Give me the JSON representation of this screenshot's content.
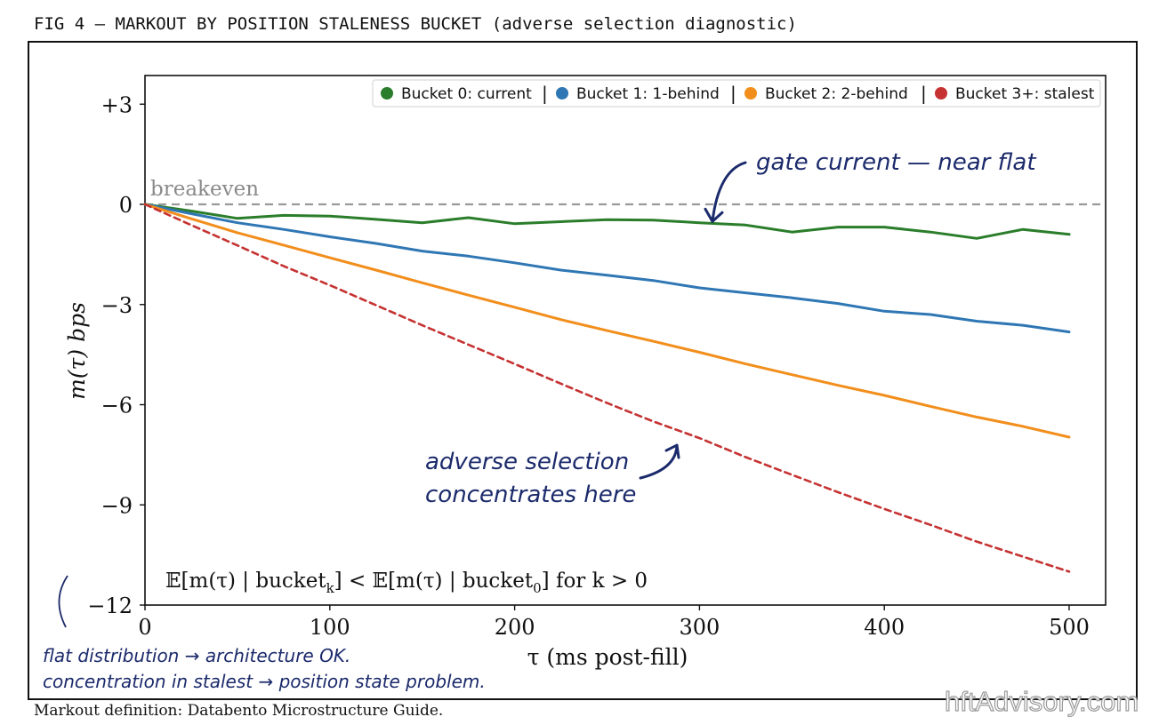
{
  "figure": {
    "title": "FIG 4 — MARKOUT BY POSITION STALENESS BUCKET (adverse selection diagnostic)",
    "source": "Markout definition: Databento Microstructure Guide.",
    "watermark": "hftAdvisory.com"
  },
  "chart_data": {
    "type": "line",
    "title": "",
    "xlabel": "τ (ms post-fill)",
    "ylabel": "m(τ) bps",
    "xlim": [
      0,
      520
    ],
    "ylim": [
      -12,
      3.8
    ],
    "xticks": [
      0,
      100,
      200,
      300,
      400,
      500
    ],
    "xtick_labels": [
      "0",
      "100",
      "200",
      "300",
      "400",
      "500"
    ],
    "yticks": [
      3,
      0,
      -3,
      -6,
      -9,
      -12
    ],
    "ytick_labels": [
      "+3",
      "0",
      "−3",
      "−6",
      "−9",
      "−12"
    ],
    "grid": false,
    "legend": {
      "placement": "top-right",
      "separator": "|"
    },
    "x": [
      0,
      25,
      50,
      75,
      100,
      125,
      150,
      175,
      200,
      225,
      250,
      275,
      300,
      325,
      350,
      375,
      400,
      425,
      450,
      475,
      500
    ],
    "series": [
      {
        "name": "Bucket 0: current",
        "color": "#2a7d2a",
        "style": "solid",
        "values": [
          0,
          -0.2,
          -0.42,
          -0.33,
          -0.35,
          -0.45,
          -0.55,
          -0.4,
          -0.58,
          -0.52,
          -0.46,
          -0.47,
          -0.55,
          -0.62,
          -0.83,
          -0.68,
          -0.68,
          -0.83,
          -1.02,
          -0.75,
          -0.9
        ]
      },
      {
        "name": "Bucket 1: 1-behind",
        "color": "#2f77b4",
        "style": "solid",
        "values": [
          0,
          -0.28,
          -0.55,
          -0.75,
          -0.97,
          -1.17,
          -1.4,
          -1.55,
          -1.75,
          -1.97,
          -2.12,
          -2.28,
          -2.5,
          -2.65,
          -2.8,
          -2.97,
          -3.2,
          -3.3,
          -3.5,
          -3.62,
          -3.82
        ]
      },
      {
        "name": "Bucket 2: 2-behind",
        "color": "#f28e1c",
        "style": "solid",
        "values": [
          0,
          -0.43,
          -0.85,
          -1.22,
          -1.6,
          -1.97,
          -2.35,
          -2.72,
          -3.08,
          -3.45,
          -3.78,
          -4.1,
          -4.43,
          -4.78,
          -5.1,
          -5.42,
          -5.72,
          -6.05,
          -6.37,
          -6.65,
          -6.97
        ]
      },
      {
        "name": "Bucket 3+: stalest",
        "color": "#c63232",
        "style": "dashed",
        "values": [
          0,
          -0.62,
          -1.23,
          -1.85,
          -2.42,
          -3.02,
          -3.62,
          -4.2,
          -4.78,
          -5.37,
          -5.95,
          -6.5,
          -7.0,
          -7.57,
          -8.1,
          -8.62,
          -9.12,
          -9.6,
          -10.1,
          -10.55,
          -11.0
        ]
      }
    ],
    "reference_line": {
      "y": 0,
      "label": "breakeven",
      "color": "#999999"
    },
    "annotations": [
      {
        "text": "gate current — near flat",
        "points_to": {
          "x": 307,
          "y": -0.3
        }
      },
      {
        "text_lines": [
          "adverse selection",
          "concentrates here"
        ],
        "points_to": {
          "x": 295,
          "y": -7.0
        }
      }
    ],
    "formula": {
      "lhs": "𝔼[m(τ) | bucket",
      "lhs_sub": "k",
      "mid": "] < 𝔼[m(τ) | bucket",
      "rhs_sub": "0",
      "rhs": "] for k > 0"
    },
    "margin_note": {
      "lines": [
        "flat distribution → architecture OK.",
        "concentration in stalest → position state problem."
      ],
      "color": "#1b2a6b"
    }
  }
}
